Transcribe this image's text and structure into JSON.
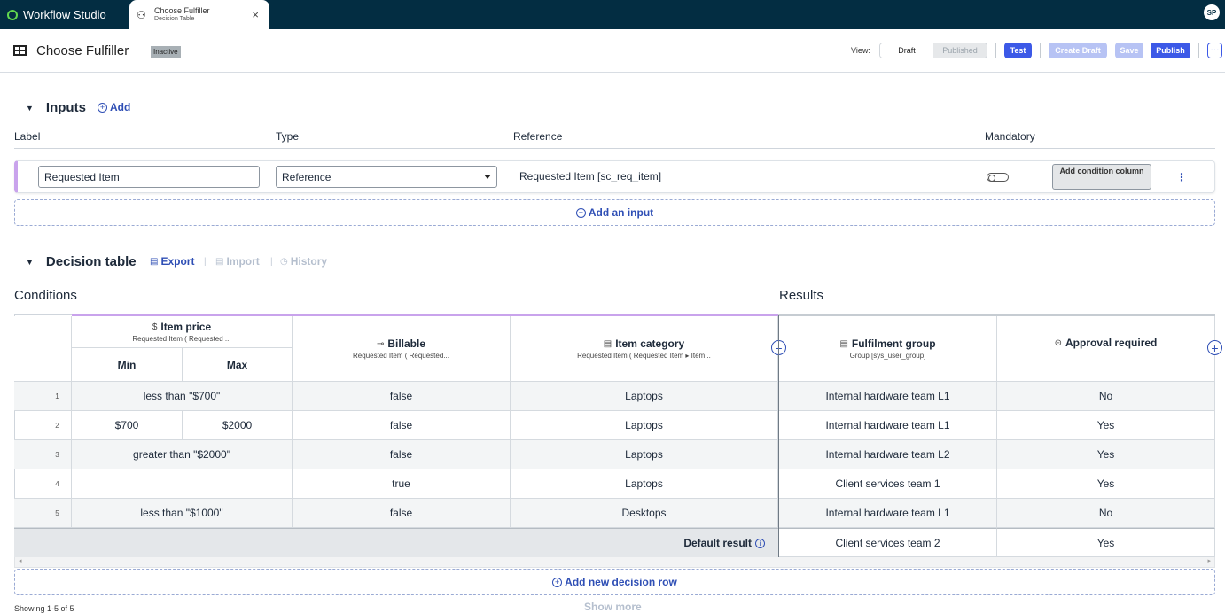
{
  "app": {
    "name": "Workflow Studio",
    "brand_color": "#62d84e",
    "topbar_color": "#032d42"
  },
  "tab": {
    "title": "Choose Fulfiller",
    "subtitle": "Decision Table",
    "close": "×",
    "icon": "decision-table-icon"
  },
  "user": {
    "initials": "SP"
  },
  "header": {
    "title": "Choose Fulfiller",
    "status": "Inactive",
    "view_label": "View:",
    "view_options": [
      "Draft",
      "Published"
    ],
    "view_selected": "Draft",
    "buttons": {
      "test": "Test",
      "create_draft": "Create Draft",
      "save": "Save",
      "publish": "Publish",
      "more": "···"
    }
  },
  "inputs": {
    "title": "Inputs",
    "add": "Add",
    "columns": {
      "label": "Label",
      "type": "Type",
      "reference": "Reference",
      "mandatory": "Mandatory"
    },
    "row": {
      "label_value": "Requested Item",
      "type_value": "Reference",
      "reference_value": "Requested Item [sc_req_item]",
      "mandatory": false,
      "add_condition": "Add condition column"
    },
    "add_input": "Add an input"
  },
  "decision": {
    "title": "Decision table",
    "export": "Export",
    "import": "Import",
    "history": "History",
    "conditions_label": "Conditions",
    "results_label": "Results",
    "headers": {
      "item_price": {
        "title": "Item price",
        "sub": "Requested Item ( Requested ...",
        "icon": "$",
        "min": "Min",
        "max": "Max"
      },
      "billable": {
        "title": "Billable",
        "sub": "Requested Item ( Requested..."
      },
      "item_category": {
        "title": "Item category",
        "sub": "Requested Item ( Requested Item ▸ Item..."
      },
      "fulfilment_group": {
        "title": "Fulfilment group",
        "sub": "Group [sys_user_group]"
      },
      "approval_required": {
        "title": "Approval required"
      }
    },
    "rows": [
      {
        "num": "1",
        "price": "less than \"$700\"",
        "min": "",
        "max": "",
        "billable": "false",
        "category": "Laptops",
        "group": "Internal hardware team L1",
        "approval": "No"
      },
      {
        "num": "2",
        "price": "",
        "min": "$700",
        "max": "$2000",
        "billable": "false",
        "category": "Laptops",
        "group": "Internal hardware team L1",
        "approval": "Yes"
      },
      {
        "num": "3",
        "price": "greater than \"$2000\"",
        "min": "",
        "max": "",
        "billable": "false",
        "category": "Laptops",
        "group": "Internal hardware team L2",
        "approval": "Yes"
      },
      {
        "num": "4",
        "price": "",
        "min": "",
        "max": "",
        "billable": "true",
        "category": "Laptops",
        "group": "Client services team 1",
        "approval": "Yes"
      },
      {
        "num": "5",
        "price": "less than \"$1000\"",
        "min": "",
        "max": "",
        "billable": "false",
        "category": "Desktops",
        "group": "Internal hardware team L1",
        "approval": "No"
      }
    ],
    "default_result": {
      "label": "Default result",
      "group": "Client services team 2",
      "approval": "Yes"
    },
    "add_row": "Add new decision row",
    "showing": "Showing 1-5 of 5",
    "show_more": "Show more"
  }
}
